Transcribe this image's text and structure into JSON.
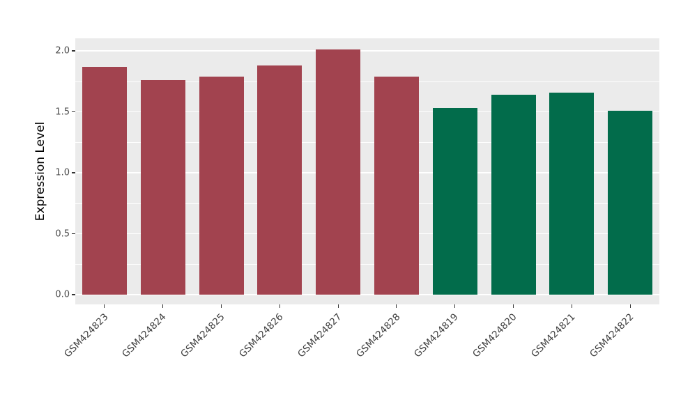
{
  "chart_data": {
    "type": "bar",
    "title": "",
    "xlabel": "",
    "ylabel": "Expression Level",
    "categories": [
      "GSM424823",
      "GSM424824",
      "GSM424825",
      "GSM424826",
      "GSM424827",
      "GSM424828",
      "GSM424819",
      "GSM424820",
      "GSM424821",
      "GSM424822"
    ],
    "values": [
      1.87,
      1.76,
      1.79,
      1.88,
      2.01,
      1.79,
      1.53,
      1.64,
      1.66,
      1.51
    ],
    "bar_colors": [
      "#A2434F",
      "#A2434F",
      "#A2434F",
      "#A2434F",
      "#A2434F",
      "#A2434F",
      "#026C4B",
      "#026C4B",
      "#026C4B",
      "#026C4B"
    ],
    "ylim": [
      0,
      2.1
    ],
    "yticks": [
      0.0,
      0.5,
      1.0,
      1.5,
      2.0
    ],
    "ytick_labels": [
      "0.0",
      "0.5",
      "1.0",
      "1.5",
      "2.0"
    ],
    "yticks_minor": [
      0.25,
      0.75,
      1.25,
      1.75
    ],
    "grid": true,
    "legend": "none",
    "panel_background": "#EBEBEB",
    "gridline_color": "#FFFFFF"
  }
}
